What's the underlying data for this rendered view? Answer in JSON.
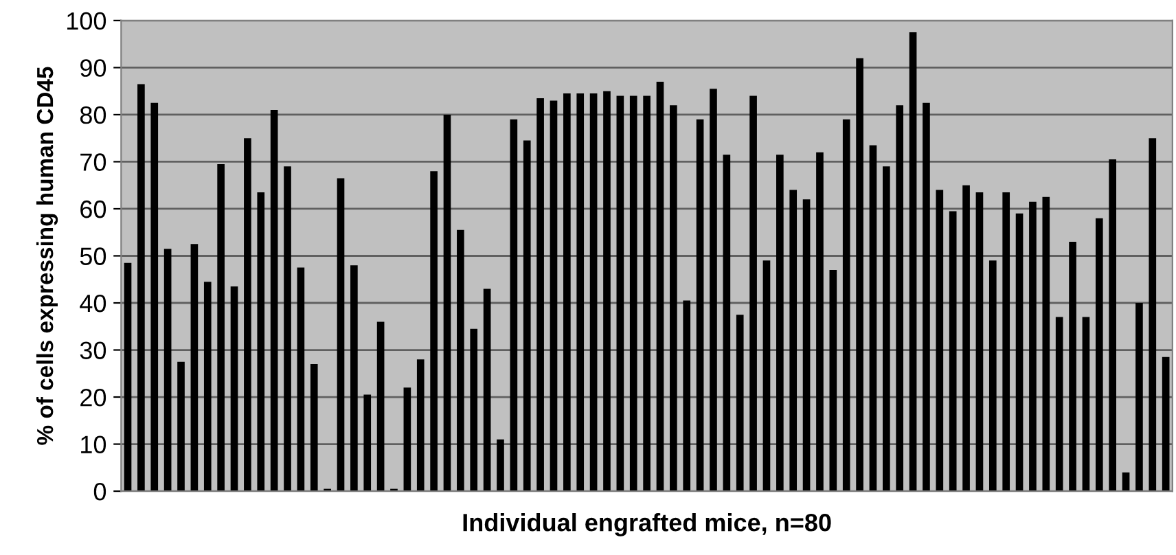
{
  "chart_data": {
    "type": "bar",
    "xlabel": "Individual engrafted mice, n=80",
    "ylabel": "% of cells expressing human CD45",
    "categories": [
      null,
      null,
      null,
      null,
      null,
      null,
      null,
      null,
      null,
      null,
      null,
      null,
      null,
      null,
      null,
      null,
      null,
      null,
      null,
      null,
      null,
      null,
      null,
      null,
      null,
      null,
      null,
      null,
      null,
      null,
      null,
      null,
      null,
      null,
      null,
      null,
      null,
      null,
      null,
      null,
      null,
      null,
      null,
      null,
      null,
      null,
      null,
      null,
      null,
      null,
      null,
      null,
      null,
      null,
      null,
      null,
      null,
      null,
      null,
      null,
      null,
      null,
      null,
      null,
      null,
      null,
      null,
      null,
      null,
      null,
      null,
      null,
      null,
      null,
      null,
      null,
      null,
      null,
      null
    ],
    "values": [
      48.5,
      86.5,
      82.5,
      51.5,
      27.5,
      52.5,
      44.5,
      69.5,
      43.5,
      75,
      63.5,
      81,
      69,
      47.5,
      27,
      0.5,
      66.5,
      48,
      20.5,
      36,
      0.5,
      22,
      28,
      68,
      80,
      55.5,
      34.5,
      43,
      11,
      79,
      74.5,
      83.5,
      83,
      84.5,
      84.5,
      84.5,
      85,
      84,
      84,
      84,
      87,
      82,
      40.5,
      79,
      85.5,
      71.5,
      37.5,
      84,
      49,
      71.5,
      64,
      62,
      72,
      47,
      79,
      92,
      73.5,
      69,
      82,
      97.5,
      82.5,
      64,
      59.5,
      65,
      63.5,
      49,
      63.5,
      59,
      61.5,
      62.5,
      37,
      53,
      37,
      58,
      70.5,
      4,
      40,
      75,
      28.5
    ],
    "color": "#000000",
    "ylim": [
      0,
      100
    ],
    "yticks": [
      0,
      10,
      20,
      30,
      40,
      50,
      60,
      70,
      80,
      90,
      100
    ],
    "grid": "y"
  }
}
